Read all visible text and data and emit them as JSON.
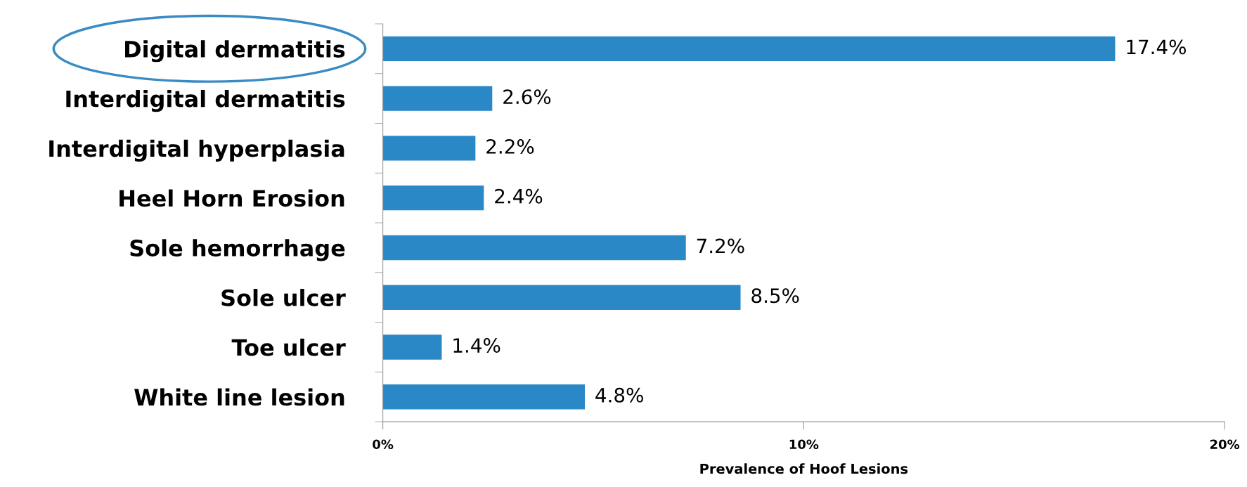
{
  "chart_data": {
    "type": "bar",
    "orientation": "horizontal",
    "xlabel": "Prevalence of Hoof Lesions",
    "categories": [
      "Digital dermatitis",
      "Interdigital dermatitis",
      "Interdigital hyperplasia",
      "Heel Horn Erosion",
      "Sole hemorrhage",
      "Sole ulcer",
      "Toe ulcer",
      "White line lesion"
    ],
    "values": [
      17.4,
      2.6,
      2.2,
      2.4,
      7.2,
      8.5,
      1.4,
      4.8
    ],
    "value_labels": [
      "17.4%",
      "2.6%",
      "2.2%",
      "2.4%",
      "7.2%",
      "8.5%",
      "1.4%",
      "4.8%"
    ],
    "color": "#2b88c6",
    "xlim": [
      0,
      20
    ],
    "xticks": [
      {
        "value": 0,
        "label": "0%"
      },
      {
        "value": 10,
        "label": "10%"
      },
      {
        "value": 20,
        "label": "20%"
      }
    ],
    "grid": false,
    "legend": false
  }
}
